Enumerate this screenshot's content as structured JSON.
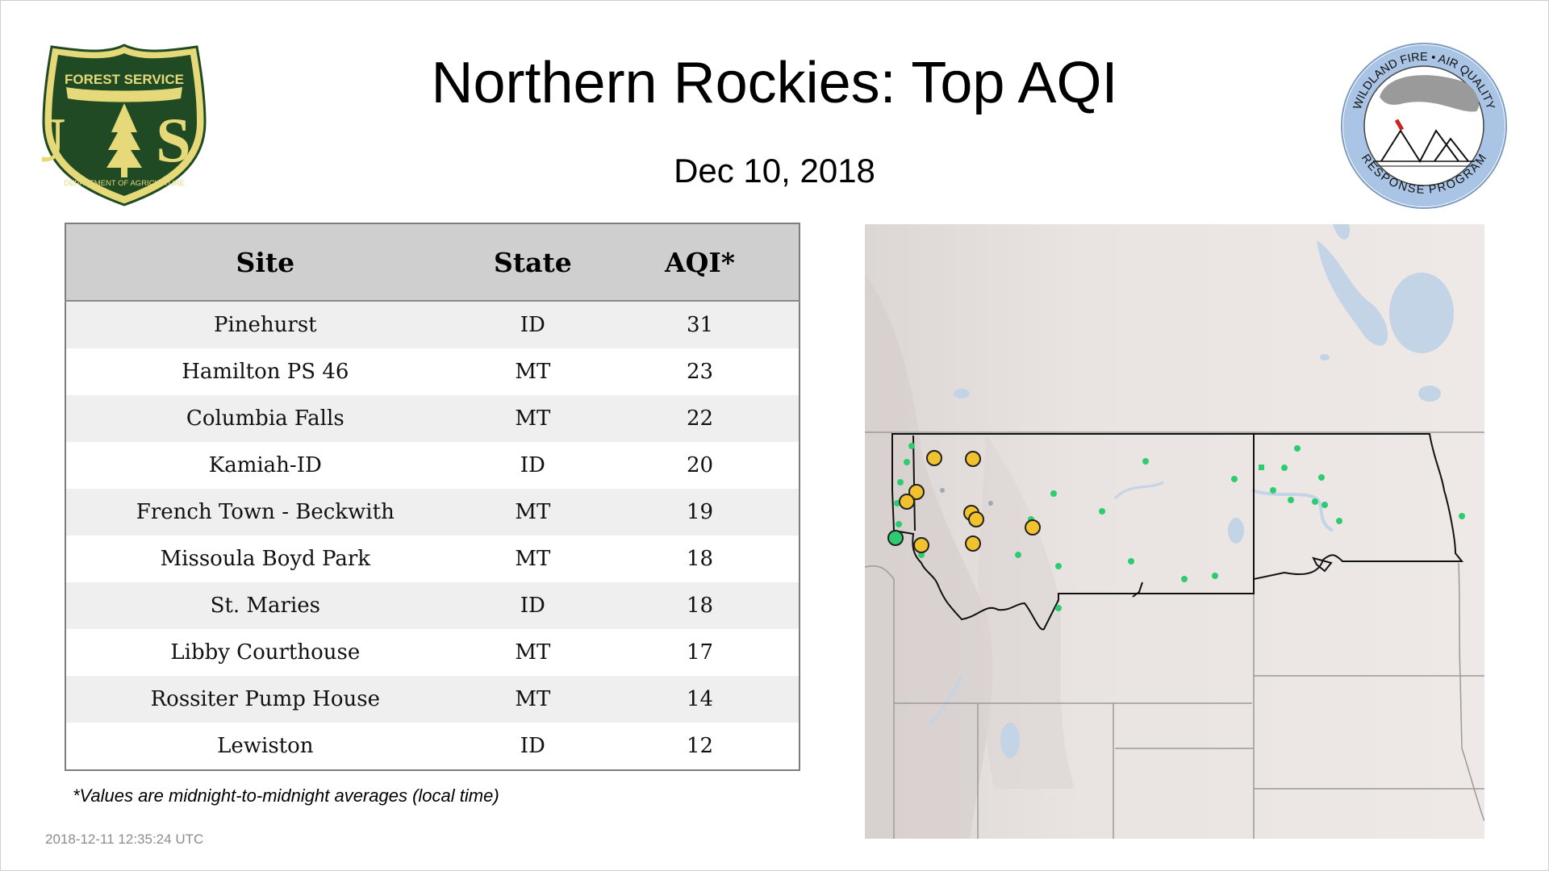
{
  "header": {
    "title": "Northern Rockies: Top AQI",
    "date": "Dec 10, 2018"
  },
  "logos": {
    "forest_service": {
      "top_text": "FOREST SERVICE",
      "letters": "U S",
      "bottom_text": "DEPARTMENT OF AGRICULTURE",
      "colors": {
        "green": "#1f4a24",
        "gold": "#e5d97a"
      }
    },
    "wildland_fire": {
      "top_text": "WILDLAND FIRE • AIR QUALITY",
      "bottom_text": "RESPONSE PROGRAM",
      "colors": {
        "ring": "#a9c4e4",
        "smoke": "#9a9a9a",
        "flame": "#cc2222"
      }
    }
  },
  "table": {
    "headers": [
      "Site",
      "State",
      "AQI*"
    ],
    "rows": [
      {
        "site": "Pinehurst",
        "state": "ID",
        "aqi": "31"
      },
      {
        "site": "Hamilton PS 46",
        "state": "MT",
        "aqi": "23"
      },
      {
        "site": "Columbia Falls",
        "state": "MT",
        "aqi": "22"
      },
      {
        "site": "Kamiah-ID",
        "state": "ID",
        "aqi": "20"
      },
      {
        "site": "French Town - Beckwith",
        "state": "MT",
        "aqi": "19"
      },
      {
        "site": "Missoula Boyd Park",
        "state": "MT",
        "aqi": "18"
      },
      {
        "site": "St. Maries",
        "state": "ID",
        "aqi": "18"
      },
      {
        "site": "Libby Courthouse",
        "state": "MT",
        "aqi": "17"
      },
      {
        "site": "Rossiter Pump House",
        "state": "MT",
        "aqi": "14"
      },
      {
        "site": "Lewiston",
        "state": "ID",
        "aqi": "12"
      }
    ]
  },
  "footnote": "*Values are midnight-to-midnight averages (local time)",
  "timestamp": "2018-12-11 12:35:24 UTC",
  "map": {
    "colors": {
      "land": "#e8e2e0",
      "water": "#c3d4e6",
      "state_border": "#111111",
      "other_border": "#9a9a9a",
      "good": "#2ecc71",
      "moderate": "#f2c12e"
    },
    "sites_moderate_count": 10
  }
}
